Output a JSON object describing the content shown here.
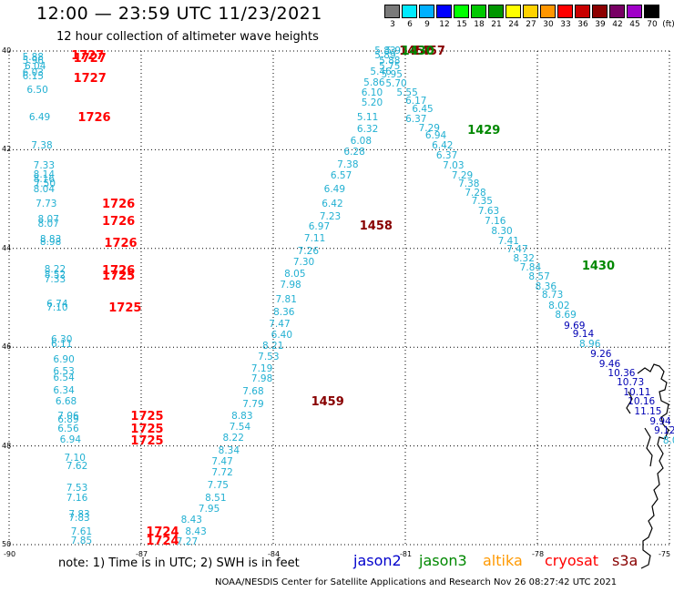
{
  "title": "12:00 — 23:59 UTC 11/23/2021",
  "subtitle": "12 hour collection of altimeter wave heights",
  "legend": {
    "unit": "(ft)",
    "bins": [
      {
        "label": "3",
        "color": "#7a7a7a"
      },
      {
        "label": "6",
        "color": "#00eaff"
      },
      {
        "label": "9",
        "color": "#00b0ff"
      },
      {
        "label": "12",
        "color": "#0000ff"
      },
      {
        "label": "15",
        "color": "#00ff00"
      },
      {
        "label": "18",
        "color": "#00c800"
      },
      {
        "label": "21",
        "color": "#009600"
      },
      {
        "label": "24",
        "color": "#ffff00"
      },
      {
        "label": "27",
        "color": "#ffd200"
      },
      {
        "label": "30",
        "color": "#ff9600"
      },
      {
        "label": "33",
        "color": "#ff0000"
      },
      {
        "label": "36",
        "color": "#c80000"
      },
      {
        "label": "39",
        "color": "#8c0000"
      },
      {
        "label": "42",
        "color": "#780064"
      },
      {
        "label": "45",
        "color": "#a000c8"
      },
      {
        "label": "70",
        "color": "#000000"
      }
    ]
  },
  "axes": {
    "y_ticks": [
      "40",
      "42",
      "44",
      "46",
      "48",
      "50"
    ],
    "x_ticks": [
      "-90",
      "-87",
      "-84",
      "-81",
      "-78",
      "-75"
    ]
  },
  "colors": {
    "wave": "#22b0d2",
    "wave_dark": "#0000b4",
    "jason2": "#0000cc",
    "jason3": "#008800",
    "altika": "#ff9900",
    "cryosat": "#ff0000",
    "s3a": "#880000",
    "grid": "#000000"
  },
  "points": [
    {
      "lat": 40.12,
      "lon": -89.45,
      "v": "5.88"
    },
    {
      "lat": 40.2,
      "lon": -89.45,
      "v": "5.96"
    },
    {
      "lat": 40.32,
      "lon": -89.4,
      "v": "6.04"
    },
    {
      "lat": 40.44,
      "lon": -89.45,
      "v": "6.03"
    },
    {
      "lat": 40.52,
      "lon": -89.45,
      "v": "6.15"
    },
    {
      "lat": 40.8,
      "lon": -89.35,
      "v": "6.50"
    },
    {
      "lat": 41.35,
      "lon": -89.3,
      "v": "6.49"
    },
    {
      "lat": 41.92,
      "lon": -89.25,
      "v": "7.38"
    },
    {
      "lat": 42.33,
      "lon": -89.2,
      "v": "7.33"
    },
    {
      "lat": 42.5,
      "lon": -89.2,
      "v": "8.14"
    },
    {
      "lat": 42.6,
      "lon": -89.2,
      "v": "8.16"
    },
    {
      "lat": 42.7,
      "lon": -89.18,
      "v": "7.50"
    },
    {
      "lat": 42.8,
      "lon": -89.2,
      "v": "8.04"
    },
    {
      "lat": 43.1,
      "lon": -89.15,
      "v": "7.73"
    },
    {
      "lat": 43.42,
      "lon": -89.1,
      "v": "8.07"
    },
    {
      "lat": 43.5,
      "lon": -89.1,
      "v": "8.07"
    },
    {
      "lat": 43.82,
      "lon": -89.05,
      "v": "8.83"
    },
    {
      "lat": 43.88,
      "lon": -89.05,
      "v": "8.98"
    },
    {
      "lat": 44.42,
      "lon": -88.95,
      "v": "8.22"
    },
    {
      "lat": 44.54,
      "lon": -88.95,
      "v": "8.52"
    },
    {
      "lat": 44.64,
      "lon": -88.95,
      "v": "7.33"
    },
    {
      "lat": 45.12,
      "lon": -88.9,
      "v": "6.74"
    },
    {
      "lat": 45.2,
      "lon": -88.9,
      "v": "7.10"
    },
    {
      "lat": 45.85,
      "lon": -88.8,
      "v": "6.30"
    },
    {
      "lat": 45.95,
      "lon": -88.8,
      "v": "6.11"
    },
    {
      "lat": 46.25,
      "lon": -88.75,
      "v": "6.90"
    },
    {
      "lat": 46.5,
      "lon": -88.75,
      "v": "6.53"
    },
    {
      "lat": 46.62,
      "lon": -88.75,
      "v": "6.54"
    },
    {
      "lat": 46.88,
      "lon": -88.75,
      "v": "6.34"
    },
    {
      "lat": 47.11,
      "lon": -88.7,
      "v": "6.68"
    },
    {
      "lat": 47.4,
      "lon": -88.65,
      "v": "7.06"
    },
    {
      "lat": 47.48,
      "lon": -88.65,
      "v": "6.89"
    },
    {
      "lat": 47.66,
      "lon": -88.65,
      "v": "6.56"
    },
    {
      "lat": 47.88,
      "lon": -88.6,
      "v": "6.94"
    },
    {
      "lat": 48.25,
      "lon": -88.5,
      "v": "7.10"
    },
    {
      "lat": 48.42,
      "lon": -88.45,
      "v": "7.62"
    },
    {
      "lat": 48.85,
      "lon": -88.45,
      "v": "7.53"
    },
    {
      "lat": 49.05,
      "lon": -88.45,
      "v": "7.16"
    },
    {
      "lat": 49.4,
      "lon": -88.4,
      "v": "7.83"
    },
    {
      "lat": 49.47,
      "lon": -88.4,
      "v": "7.83"
    },
    {
      "lat": 49.75,
      "lon": -88.35,
      "v": "7.61"
    },
    {
      "lat": 49.92,
      "lon": -88.35,
      "v": "7.85"
    },
    {
      "lat": 40.0,
      "lon": -81.45,
      "v": "5.83"
    },
    {
      "lat": 40.0,
      "lon": -81.2,
      "v": "5.93"
    },
    {
      "lat": 40.1,
      "lon": -81.45,
      "v": "5.89"
    },
    {
      "lat": 40.2,
      "lon": -81.35,
      "v": "5.88"
    },
    {
      "lat": 40.32,
      "lon": -81.35,
      "v": "5.75"
    },
    {
      "lat": 40.42,
      "lon": -81.55,
      "v": "5.46"
    },
    {
      "lat": 40.48,
      "lon": -81.3,
      "v": "5.95"
    },
    {
      "lat": 40.65,
      "lon": -81.7,
      "v": "5.86"
    },
    {
      "lat": 40.66,
      "lon": -81.2,
      "v": "5.70"
    },
    {
      "lat": 40.85,
      "lon": -81.75,
      "v": "6.10"
    },
    {
      "lat": 40.85,
      "lon": -80.95,
      "v": "5.55"
    },
    {
      "lat": 41.05,
      "lon": -81.75,
      "v": "5.20"
    },
    {
      "lat": 41.02,
      "lon": -80.75,
      "v": "6.17"
    },
    {
      "lat": 41.18,
      "lon": -80.6,
      "v": "6.45"
    },
    {
      "lat": 41.35,
      "lon": -81.85,
      "v": "5.11"
    },
    {
      "lat": 41.38,
      "lon": -80.75,
      "v": "6.37"
    },
    {
      "lat": 41.58,
      "lon": -81.85,
      "v": "6.32"
    },
    {
      "lat": 41.57,
      "lon": -80.45,
      "v": "7.29"
    },
    {
      "lat": 41.72,
      "lon": -80.3,
      "v": "6.94"
    },
    {
      "lat": 41.83,
      "lon": -82.0,
      "v": "6.08"
    },
    {
      "lat": 41.92,
      "lon": -80.15,
      "v": "6.42"
    },
    {
      "lat": 42.04,
      "lon": -82.15,
      "v": "6.28"
    },
    {
      "lat": 42.12,
      "lon": -80.05,
      "v": "6.37"
    },
    {
      "lat": 42.3,
      "lon": -82.3,
      "v": "7.38"
    },
    {
      "lat": 42.33,
      "lon": -79.9,
      "v": "7.03"
    },
    {
      "lat": 42.52,
      "lon": -82.45,
      "v": "6.57"
    },
    {
      "lat": 42.53,
      "lon": -79.7,
      "v": "7.29"
    },
    {
      "lat": 42.7,
      "lon": -79.55,
      "v": "7.38"
    },
    {
      "lat": 42.8,
      "lon": -82.6,
      "v": "6.49"
    },
    {
      "lat": 42.88,
      "lon": -79.4,
      "v": "7.28"
    },
    {
      "lat": 43.05,
      "lon": -79.25,
      "v": "7.35"
    },
    {
      "lat": 43.1,
      "lon": -82.65,
      "v": "6.42"
    },
    {
      "lat": 43.25,
      "lon": -79.1,
      "v": "7.63"
    },
    {
      "lat": 43.35,
      "lon": -82.7,
      "v": "7.23"
    },
    {
      "lat": 43.45,
      "lon": -78.95,
      "v": "7.16"
    },
    {
      "lat": 43.57,
      "lon": -82.95,
      "v": "6.97"
    },
    {
      "lat": 43.65,
      "lon": -78.8,
      "v": "8.30"
    },
    {
      "lat": 43.8,
      "lon": -83.05,
      "v": "7.11"
    },
    {
      "lat": 43.86,
      "lon": -78.65,
      "v": "7.41"
    },
    {
      "lat": 44.05,
      "lon": -83.2,
      "v": "7.26"
    },
    {
      "lat": 44.03,
      "lon": -78.45,
      "v": "7.47"
    },
    {
      "lat": 44.2,
      "lon": -78.3,
      "v": "8.32"
    },
    {
      "lat": 44.28,
      "lon": -83.3,
      "v": "7.30"
    },
    {
      "lat": 44.4,
      "lon": -78.15,
      "v": "7.84"
    },
    {
      "lat": 44.52,
      "lon": -83.5,
      "v": "8.05"
    },
    {
      "lat": 44.58,
      "lon": -77.95,
      "v": "8.57"
    },
    {
      "lat": 44.75,
      "lon": -83.6,
      "v": "7.98"
    },
    {
      "lat": 44.77,
      "lon": -77.8,
      "v": "8.36"
    },
    {
      "lat": 44.95,
      "lon": -77.65,
      "v": "8.73"
    },
    {
      "lat": 45.03,
      "lon": -83.7,
      "v": "7.81"
    },
    {
      "lat": 45.17,
      "lon": -77.5,
      "v": "8.02"
    },
    {
      "lat": 45.3,
      "lon": -83.75,
      "v": "8.36"
    },
    {
      "lat": 45.35,
      "lon": -77.35,
      "v": "8.69"
    },
    {
      "lat": 45.53,
      "lon": -83.85,
      "v": "7.47"
    },
    {
      "lat": 45.57,
      "lon": -77.15,
      "v": "9.69"
    },
    {
      "lat": 45.75,
      "lon": -83.8,
      "v": "6.40"
    },
    {
      "lat": 45.73,
      "lon": -76.95,
      "v": "9.14"
    },
    {
      "lat": 45.95,
      "lon": -76.8,
      "v": "8.96"
    },
    {
      "lat": 45.98,
      "lon": -84.0,
      "v": "8.21"
    },
    {
      "lat": 46.15,
      "lon": -76.55,
      "v": "9.26"
    },
    {
      "lat": 46.2,
      "lon": -84.1,
      "v": "7.53"
    },
    {
      "lat": 46.35,
      "lon": -76.35,
      "v": "9.46"
    },
    {
      "lat": 46.43,
      "lon": -84.25,
      "v": "7.19"
    },
    {
      "lat": 46.53,
      "lon": -76.15,
      "v": "10.36"
    },
    {
      "lat": 46.65,
      "lon": -84.25,
      "v": "7.98"
    },
    {
      "lat": 46.72,
      "lon": -75.95,
      "v": "10.73"
    },
    {
      "lat": 46.9,
      "lon": -84.45,
      "v": "7.68"
    },
    {
      "lat": 46.92,
      "lon": -75.8,
      "v": "10.11"
    },
    {
      "lat": 47.1,
      "lon": -75.7,
      "v": "10.16"
    },
    {
      "lat": 47.15,
      "lon": -84.45,
      "v": "7.79"
    },
    {
      "lat": 47.3,
      "lon": -75.55,
      "v": "11.15"
    },
    {
      "lat": 47.4,
      "lon": -84.7,
      "v": "8.83"
    },
    {
      "lat": 47.5,
      "lon": -75.2,
      "v": "9.94"
    },
    {
      "lat": 47.62,
      "lon": -84.75,
      "v": "7.54"
    },
    {
      "lat": 47.7,
      "lon": -75.1,
      "v": "9.12"
    },
    {
      "lat": 47.85,
      "lon": -84.9,
      "v": "8.22"
    },
    {
      "lat": 47.9,
      "lon": -74.9,
      "v": "8.00"
    },
    {
      "lat": 48.1,
      "lon": -85.0,
      "v": "8.34"
    },
    {
      "lat": 48.32,
      "lon": -85.15,
      "v": "7.47"
    },
    {
      "lat": 48.55,
      "lon": -85.15,
      "v": "7.72"
    },
    {
      "lat": 48.8,
      "lon": -85.25,
      "v": "7.75"
    },
    {
      "lat": 49.05,
      "lon": -85.3,
      "v": "8.51"
    },
    {
      "lat": 49.28,
      "lon": -85.45,
      "v": "7.95"
    },
    {
      "lat": 49.5,
      "lon": -85.85,
      "v": "8.43"
    },
    {
      "lat": 49.75,
      "lon": -85.75,
      "v": "8.43"
    },
    {
      "lat": 49.95,
      "lon": -85.95,
      "v": "7.27"
    }
  ],
  "times": [
    {
      "lat": 40.1,
      "lon": -88.3,
      "v": "1727",
      "sat": "cryosat"
    },
    {
      "lat": 40.15,
      "lon": -88.25,
      "v": "1727",
      "sat": "cryosat"
    },
    {
      "lat": 40.55,
      "lon": -88.25,
      "v": "1727",
      "sat": "cryosat"
    },
    {
      "lat": 41.35,
      "lon": -88.15,
      "v": "1726",
      "sat": "cryosat"
    },
    {
      "lat": 43.1,
      "lon": -87.6,
      "v": "1726",
      "sat": "cryosat"
    },
    {
      "lat": 43.45,
      "lon": -87.6,
      "v": "1726",
      "sat": "cryosat"
    },
    {
      "lat": 43.9,
      "lon": -87.55,
      "v": "1726",
      "sat": "cryosat"
    },
    {
      "lat": 44.45,
      "lon": -87.6,
      "v": "1726",
      "sat": "cryosat"
    },
    {
      "lat": 44.55,
      "lon": -87.6,
      "v": "1725",
      "sat": "cryosat"
    },
    {
      "lat": 45.2,
      "lon": -87.45,
      "v": "1725",
      "sat": "cryosat"
    },
    {
      "lat": 47.4,
      "lon": -86.95,
      "v": "1725",
      "sat": "cryosat"
    },
    {
      "lat": 47.65,
      "lon": -86.95,
      "v": "1725",
      "sat": "cryosat"
    },
    {
      "lat": 47.9,
      "lon": -86.95,
      "v": "1725",
      "sat": "cryosat"
    },
    {
      "lat": 49.75,
      "lon": -86.6,
      "v": "1724",
      "sat": "cryosat"
    },
    {
      "lat": 49.93,
      "lon": -86.6,
      "v": "1724",
      "sat": "cryosat"
    },
    {
      "lat": 40.0,
      "lon": -80.85,
      "v": "1457",
      "sat": "s3a"
    },
    {
      "lat": 40.0,
      "lon": -80.55,
      "v": "1457",
      "sat": "s3a"
    },
    {
      "lat": 43.55,
      "lon": -81.75,
      "v": "1458",
      "sat": "s3a"
    },
    {
      "lat": 47.1,
      "lon": -82.85,
      "v": "1459",
      "sat": "s3a"
    },
    {
      "lat": 40.0,
      "lon": -80.8,
      "v": "1430",
      "sat": "jason3"
    },
    {
      "lat": 41.6,
      "lon": -79.3,
      "v": "1429",
      "sat": "jason3"
    },
    {
      "lat": 44.35,
      "lon": -76.7,
      "v": "1430",
      "sat": "jason3"
    }
  ],
  "note": "note: 1) Time is in UTC; 2) SWH is in feet",
  "satellites": [
    "jason2",
    "jason3",
    "altika",
    "cryosat",
    "s3a"
  ],
  "footer": "NOAA/NESDIS Center for Satellite Applications and Research   Nov 26 08:27:42 UTC 2021"
}
